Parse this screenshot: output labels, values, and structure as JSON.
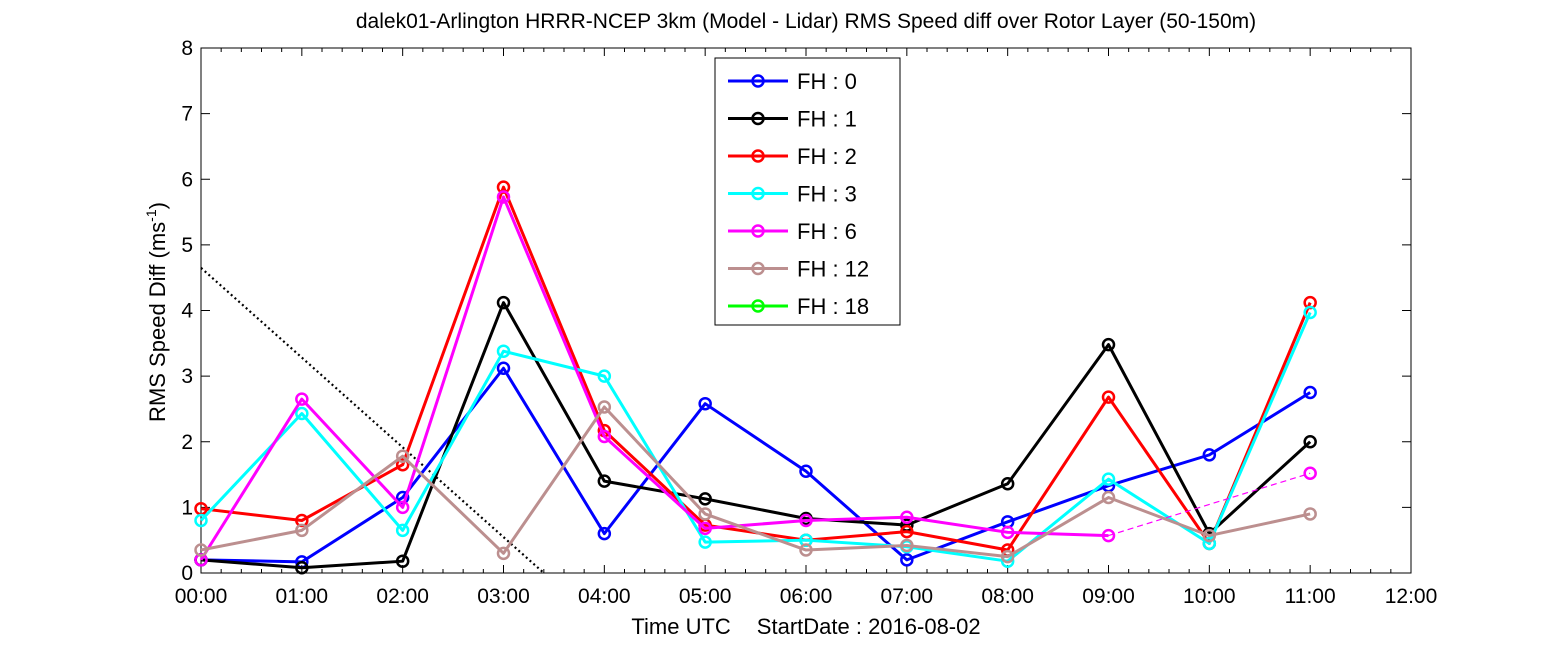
{
  "chart_data": {
    "type": "line",
    "title": "dalek01-Arlington HRRR-NCEP 3km (Model - Lidar) RMS Speed diff over Rotor Layer (50-150m)",
    "xlabel_time": "Time UTC",
    "xlabel_start": "StartDate : 2016-08-02",
    "ylabel_main": "RMS Speed Diff (ms",
    "ylabel_sup": "-1",
    "ylabel_close": ")",
    "xlim": [
      0,
      12
    ],
    "ylim": [
      0,
      8
    ],
    "x_ticks": [
      0,
      1,
      2,
      3,
      4,
      5,
      6,
      7,
      8,
      9,
      10,
      11,
      12
    ],
    "x_tick_labels": [
      "00:00",
      "01:00",
      "02:00",
      "03:00",
      "04:00",
      "05:00",
      "06:00",
      "07:00",
      "08:00",
      "09:00",
      "10:00",
      "11:00",
      "12:00"
    ],
    "y_ticks": [
      0,
      1,
      2,
      3,
      4,
      5,
      6,
      7,
      8
    ],
    "y_tick_labels": [
      "0",
      "1",
      "2",
      "3",
      "4",
      "5",
      "6",
      "7",
      "8"
    ],
    "grid": false,
    "legend_position": "top-center",
    "series": [
      {
        "name": "FH : 0",
        "color": "#0000ff",
        "x": [
          0,
          1,
          2,
          3,
          4,
          5,
          6,
          7,
          8,
          9,
          10,
          11
        ],
        "y": [
          0.2,
          0.17,
          1.15,
          3.12,
          0.6,
          2.58,
          1.55,
          0.2,
          0.78,
          1.33,
          1.8,
          2.75
        ]
      },
      {
        "name": "FH : 1",
        "color": "#000000",
        "x": [
          0,
          1,
          2,
          3,
          4,
          5,
          6,
          7,
          8,
          9,
          10,
          11
        ],
        "y": [
          0.2,
          0.08,
          0.18,
          4.12,
          1.4,
          1.13,
          0.83,
          0.73,
          1.36,
          3.48,
          0.6,
          2.0
        ]
      },
      {
        "name": "FH : 2",
        "color": "#ff0000",
        "x": [
          0,
          1,
          2,
          3,
          4,
          5,
          6,
          7,
          8,
          9,
          10,
          11
        ],
        "y": [
          0.98,
          0.8,
          1.65,
          5.88,
          2.17,
          0.73,
          0.5,
          0.63,
          0.35,
          2.68,
          0.45,
          4.12
        ]
      },
      {
        "name": "FH : 3",
        "color": "#00ffff",
        "x": [
          0,
          1,
          2,
          3,
          4,
          5,
          6,
          7,
          8,
          9,
          10,
          11
        ],
        "y": [
          0.8,
          2.43,
          0.65,
          3.38,
          3.0,
          0.47,
          0.5,
          0.4,
          0.18,
          1.43,
          0.45,
          3.97
        ]
      },
      {
        "name": "FH : 6",
        "color": "#ff00ff",
        "x": [
          0,
          1,
          2,
          3,
          4,
          5,
          6,
          7,
          8,
          9
        ],
        "y": [
          0.2,
          2.65,
          1.0,
          5.73,
          2.08,
          0.68,
          0.8,
          0.85,
          0.62,
          0.57
        ],
        "dashed_extension": {
          "x": [
            9,
            11
          ],
          "y": [
            0.57,
            1.52
          ]
        }
      },
      {
        "name": "FH : 12",
        "color": "#bc8f8f",
        "x": [
          0,
          1,
          2,
          3,
          4,
          5,
          6,
          7,
          8,
          9,
          10,
          11
        ],
        "y": [
          0.35,
          0.65,
          1.78,
          0.3,
          2.53,
          0.9,
          0.35,
          0.42,
          0.25,
          1.15,
          0.57,
          0.9
        ]
      },
      {
        "name": "FH : 18",
        "color": "#00ff00",
        "x": [],
        "y": []
      }
    ],
    "reference_line": {
      "style": "dotted",
      "color": "#000000",
      "x": [
        0,
        3.4
      ],
      "y": [
        4.65,
        0
      ]
    }
  }
}
